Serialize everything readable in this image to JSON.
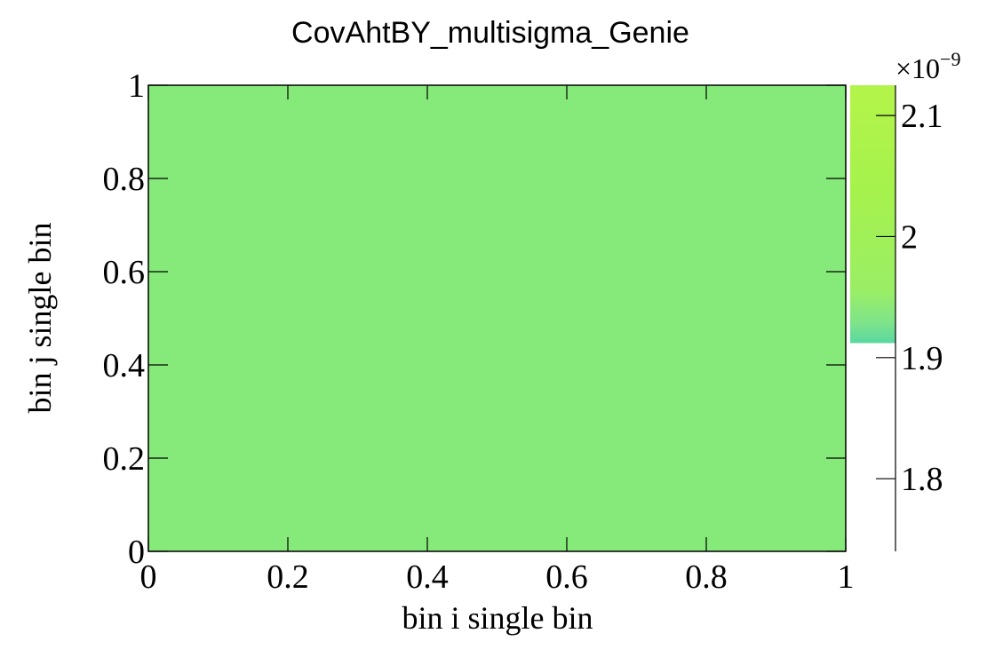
{
  "chart_data": {
    "type": "heatmap",
    "title": "CovAhtBY_multisigma_Genie",
    "xlabel": "bin i single bin",
    "ylabel": "bin j single bin",
    "xlim": [
      0,
      1
    ],
    "ylim": [
      0,
      1
    ],
    "x_ticks": [
      "0",
      "0.2",
      "0.4",
      "0.6",
      "0.8",
      "1"
    ],
    "y_ticks": [
      "0",
      "0.2",
      "0.4",
      "0.6",
      "0.8",
      "1"
    ],
    "x_tick_values": [
      0,
      0.2,
      0.4,
      0.6,
      0.8,
      1
    ],
    "y_tick_values": [
      0,
      0.2,
      0.4,
      0.6,
      0.8,
      1
    ],
    "cells": [
      {
        "x_range": [
          0,
          1
        ],
        "y_range": [
          0,
          1
        ],
        "value": 1.93e-09
      }
    ],
    "cell_color": "#86ea7a",
    "colorbar": {
      "exponent_label": "×10",
      "exponent_power": "−9",
      "range": [
        1.74,
        2.125
      ],
      "filled_range": [
        1.912,
        2.125
      ],
      "ticks": [
        "1.8",
        "1.9",
        "2",
        "2.1"
      ],
      "tick_values": [
        1.8,
        1.9,
        2.0,
        2.1
      ],
      "colors": [
        "#5ad8a0",
        "#7fe48a",
        "#9aee66",
        "#a6f24c",
        "#b4f44a"
      ]
    },
    "grid": false
  }
}
